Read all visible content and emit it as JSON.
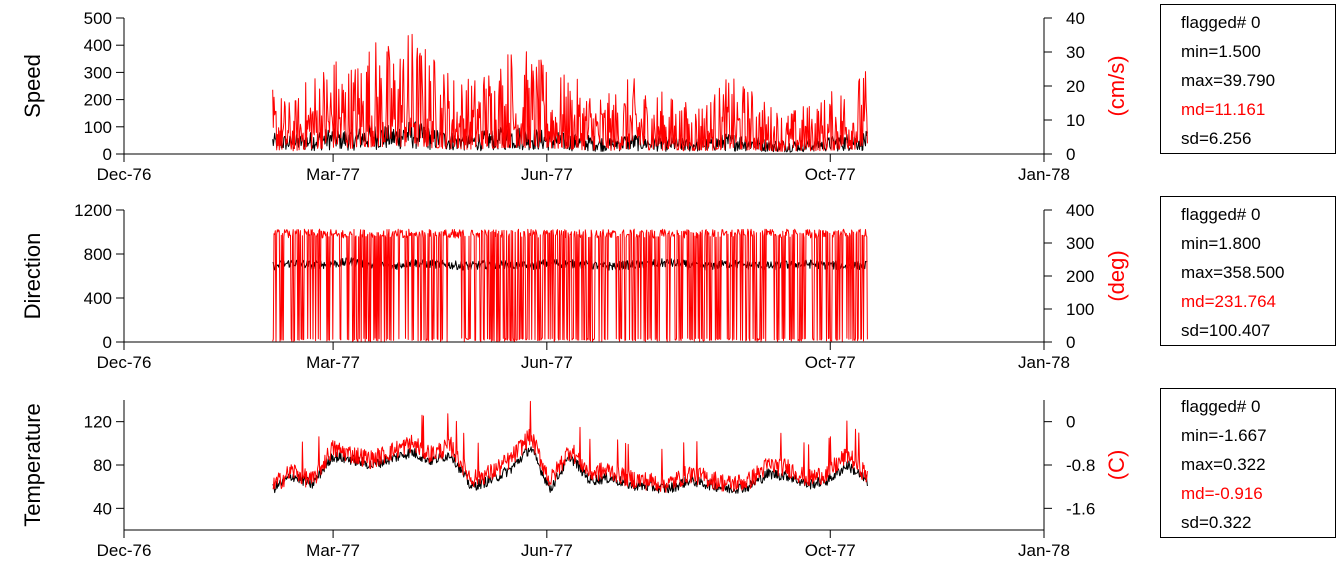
{
  "colors": {
    "primary": "#000000",
    "secondary": "#ff0000"
  },
  "x_ticks": [
    "Dec-76",
    "Mar-77",
    "Jun-77",
    "Oct-77",
    "Jan-78"
  ],
  "panels": [
    {
      "left_label": "Speed",
      "right_label": "(cm/s)",
      "left_ticks": [
        "0",
        "100",
        "200",
        "300",
        "400",
        "500"
      ],
      "right_ticks": [
        "0",
        "10",
        "20",
        "30",
        "40"
      ],
      "stats": [
        "flagged# 0",
        "min=1.500",
        "max=39.790",
        "md=11.161",
        "sd=6.256"
      ]
    },
    {
      "left_label": "Direction",
      "right_label": "(deg)",
      "left_ticks": [
        "0",
        "400",
        "800",
        "1200"
      ],
      "right_ticks": [
        "0",
        "100",
        "200",
        "300",
        "400"
      ],
      "stats": [
        "flagged# 0",
        "min=1.800",
        "max=358.500",
        "md=231.764",
        "sd=100.407"
      ]
    },
    {
      "left_label": "Temperature",
      "right_label": "(C)",
      "left_ticks": [
        "40",
        "80",
        "120"
      ],
      "right_ticks": [
        "-1.6",
        "-0.8",
        "0"
      ],
      "stats": [
        "flagged# 0",
        "min=-1.667",
        "max=0.322",
        "md=-0.916",
        "sd=0.322"
      ]
    }
  ],
  "chart_data": [
    {
      "type": "line",
      "ylabel": "Speed",
      "y2label": "(cm/s)",
      "xlim": [
        "1976-12-01",
        "1978-01-01"
      ],
      "ylim": [
        0,
        500
      ],
      "y2lim": [
        0,
        40
      ],
      "x_tick_labels": [
        "Dec-76",
        "Mar-77",
        "Jun-77",
        "Oct-77",
        "Jan-78"
      ],
      "data_start": "1977-02-03",
      "data_end": "1977-10-17",
      "series": [
        {
          "color": "#000000",
          "values": [
            55,
            50,
            60,
            70,
            65,
            80,
            75,
            90,
            70,
            60,
            55,
            65,
            75,
            70,
            60,
            55,
            50,
            45,
            55,
            50,
            45,
            40,
            45,
            55,
            50,
            40,
            35,
            40,
            45,
            55,
            60
          ]
        },
        {
          "color": "#ff0000",
          "axis": "right",
          "values": [
            8,
            6,
            10,
            12,
            11,
            14,
            13,
            15,
            12,
            10,
            9,
            11,
            13,
            12,
            10,
            9,
            8,
            7,
            9,
            8,
            7,
            6,
            7,
            9,
            8,
            6,
            5,
            6,
            7,
            9,
            10
          ]
        }
      ]
    },
    {
      "type": "line",
      "ylabel": "Direction",
      "y2label": "(deg)",
      "xlim": [
        "1976-12-01",
        "1978-01-01"
      ],
      "ylim": [
        0,
        1200
      ],
      "y2lim": [
        0,
        400
      ],
      "x_tick_labels": [
        "Dec-76",
        "Mar-77",
        "Jun-77",
        "Oct-77",
        "Jan-78"
      ],
      "data_start": "1977-02-03",
      "data_end": "1977-10-17",
      "series": [
        {
          "color": "#000000",
          "values": [
            690,
            720,
            700,
            710,
            730,
            700,
            690,
            720,
            710,
            700,
            690,
            710,
            700,
            690,
            720,
            710,
            700,
            690,
            700,
            710,
            720,
            700,
            690,
            710,
            700,
            690,
            700,
            710,
            700,
            690,
            700
          ]
        },
        {
          "color": "#ff0000",
          "axis": "right",
          "values": [
            230,
            240,
            235,
            237,
            243,
            233,
            230,
            240,
            237,
            233,
            230,
            237,
            233,
            230,
            240,
            237,
            233,
            230,
            233,
            237,
            240,
            233,
            230,
            237,
            233,
            230,
            233,
            237,
            233,
            230,
            233
          ]
        }
      ]
    },
    {
      "type": "line",
      "ylabel": "Temperature",
      "y2label": "(C)",
      "xlim": [
        "1976-12-01",
        "1978-01-01"
      ],
      "ylim": [
        20,
        140
      ],
      "y2lim": [
        -2.0,
        0.4
      ],
      "x_tick_labels": [
        "Dec-76",
        "Mar-77",
        "Jun-77",
        "Oct-77",
        "Jan-78"
      ],
      "data_start": "1977-02-03",
      "data_end": "1977-10-17",
      "series": [
        {
          "color": "#000000",
          "values": [
            58,
            70,
            62,
            88,
            85,
            80,
            86,
            92,
            84,
            90,
            60,
            66,
            76,
            96,
            58,
            88,
            66,
            68,
            62,
            60,
            58,
            66,
            62,
            58,
            60,
            72,
            70,
            62,
            66,
            80,
            65
          ]
        },
        {
          "color": "#ff0000",
          "axis": "right",
          "values": [
            -1.2,
            -0.9,
            -1.1,
            -0.5,
            -0.6,
            -0.7,
            -0.55,
            -0.4,
            -0.6,
            -0.45,
            -1.05,
            -0.95,
            -0.7,
            -0.25,
            -1.1,
            -0.5,
            -0.95,
            -0.9,
            -1.05,
            -1.1,
            -1.15,
            -0.95,
            -1.05,
            -1.15,
            -1.1,
            -0.8,
            -0.85,
            -1.05,
            -0.95,
            -0.6,
            -1.0
          ]
        }
      ]
    }
  ]
}
